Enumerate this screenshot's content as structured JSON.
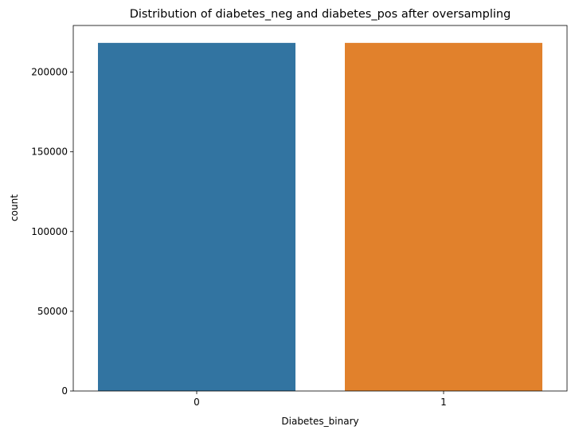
{
  "chart_data": {
    "type": "bar",
    "title": "Distribution of diabetes_neg and diabetes_pos after oversampling",
    "xlabel": "Diabetes_binary",
    "ylabel": "count",
    "categories": [
      "0",
      "1"
    ],
    "values": [
      218334,
      218334
    ],
    "colors": [
      "#3274a1",
      "#e1812c"
    ],
    "ylim": [
      0,
      229250
    ],
    "yticks": [
      0,
      50000,
      100000,
      150000,
      200000
    ],
    "ytick_labels": [
      "0",
      "50000",
      "100000",
      "150000",
      "200000"
    ],
    "grid": false,
    "legend": "none"
  }
}
